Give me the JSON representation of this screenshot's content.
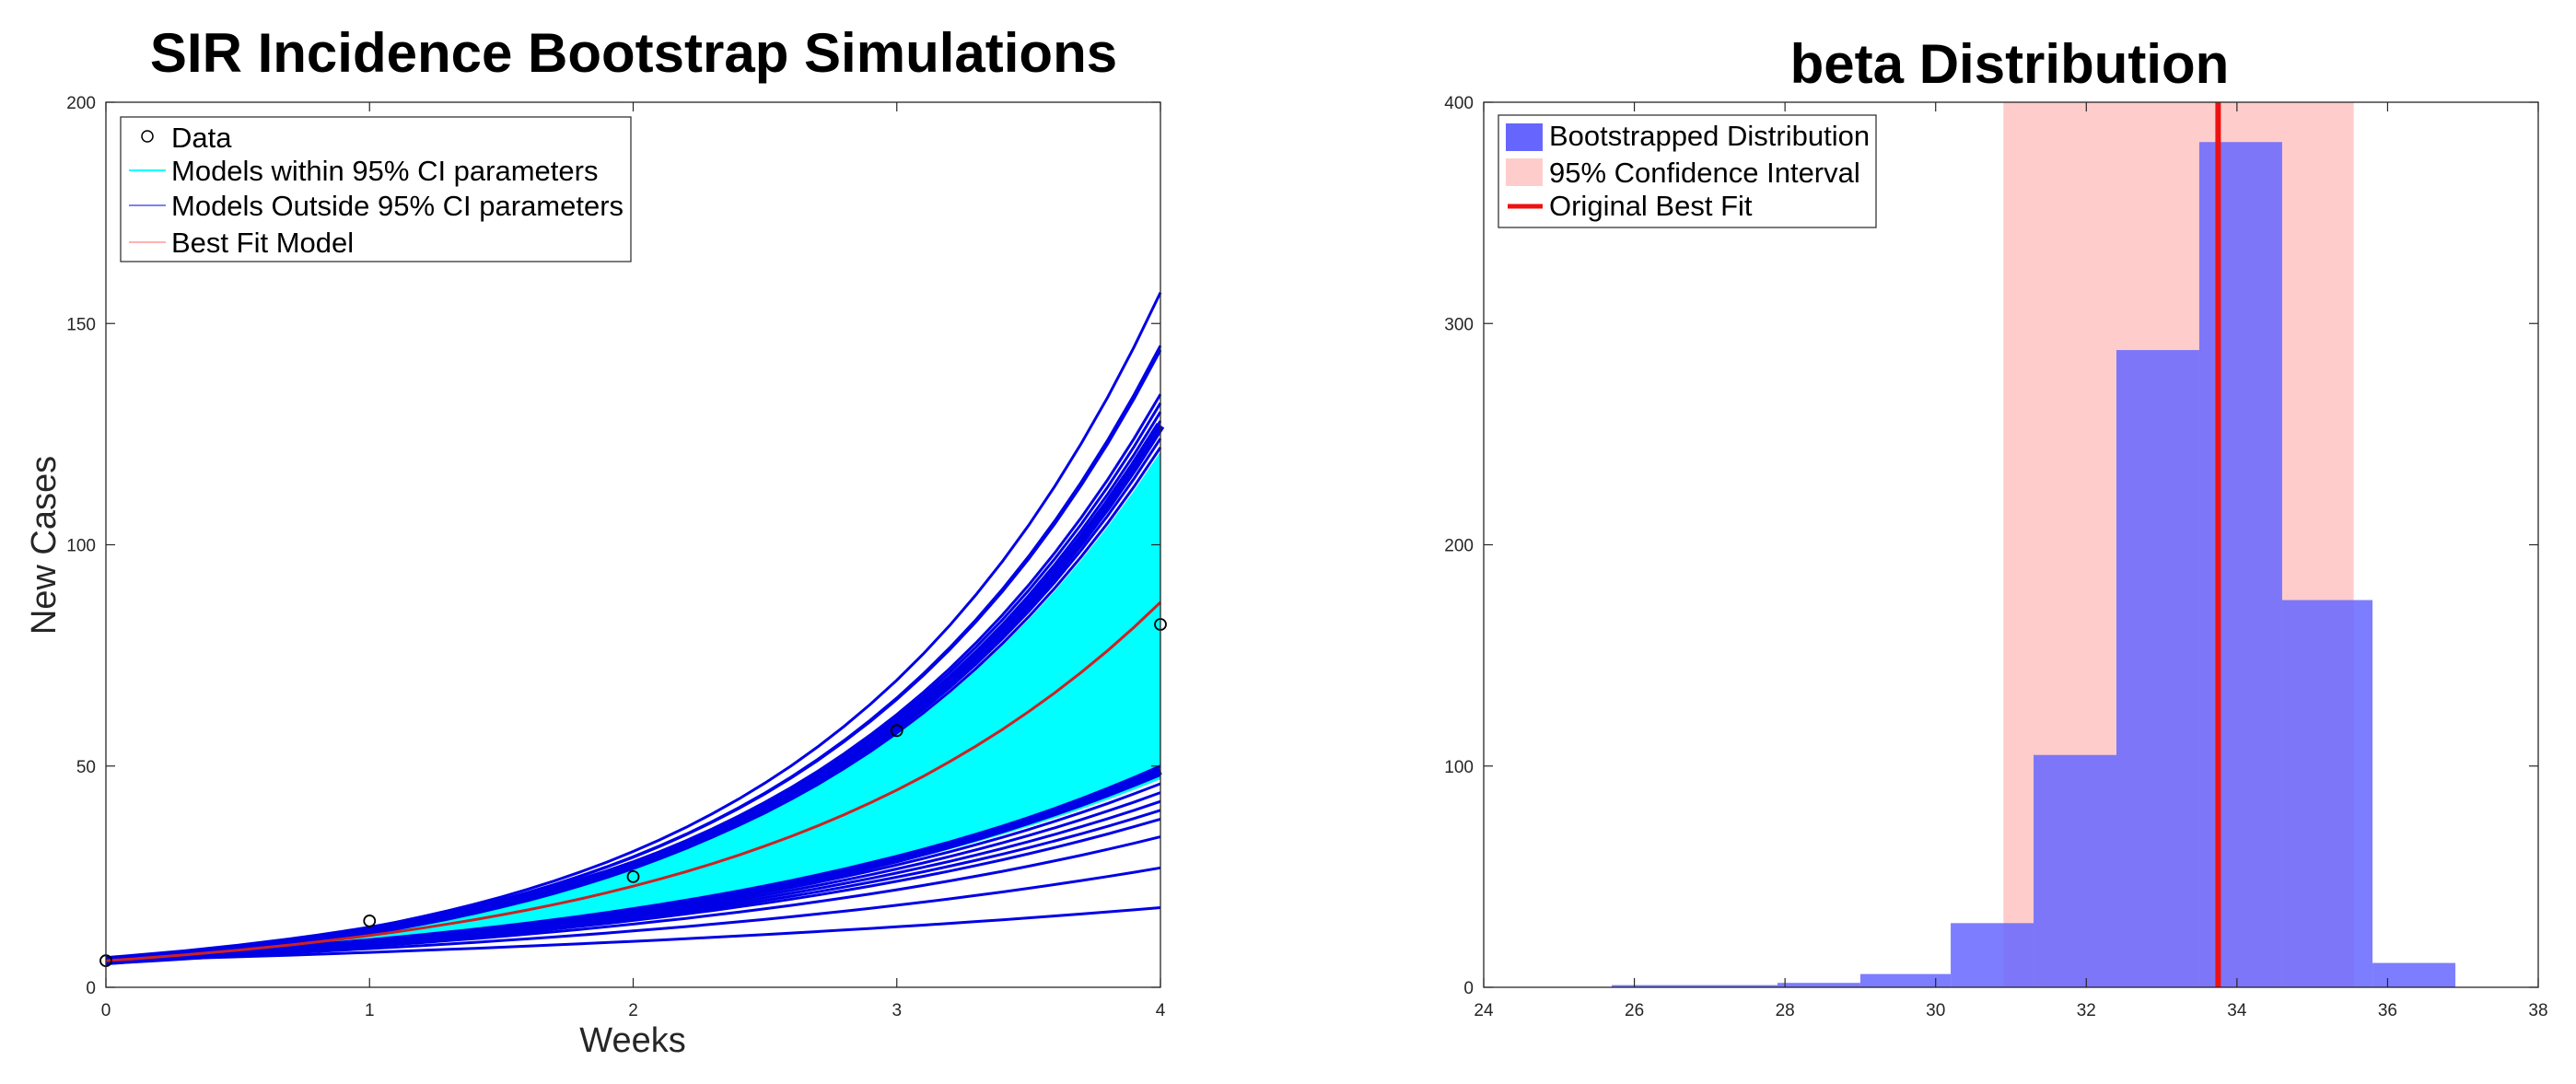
{
  "colors": {
    "data_marker": "#000000",
    "within_ci": "#00ffff",
    "outside_ci": "#0000e6",
    "best_fit": "#cc2222",
    "hist_fill": "#6666ff",
    "ci_band": "#ffcccc",
    "original_best_fit": "#ee1111"
  },
  "chart_data": [
    {
      "type": "line",
      "title": "SIR Incidence Bootstrap Simulations",
      "xlabel": "Weeks",
      "ylabel": "New Cases",
      "xlim": [
        0,
        4
      ],
      "ylim": [
        0,
        200
      ],
      "xticks": [
        "0",
        "1",
        "2",
        "3",
        "4"
      ],
      "yticks": [
        "0",
        "50",
        "100",
        "150",
        "200"
      ],
      "grid": false,
      "legend_position": "top-left",
      "legend": [
        "Data",
        "Models within 95% CI parameters",
        "Models Outside 95% CI parameters",
        "Best Fit Model"
      ],
      "data_points": {
        "x": [
          0,
          1,
          2,
          3,
          4
        ],
        "y": [
          6,
          15,
          25,
          58,
          82
        ]
      },
      "best_fit": {
        "x": [
          0,
          1,
          2,
          3,
          4
        ],
        "y": [
          6,
          12,
          23,
          45,
          87
        ]
      },
      "within_ci_band": {
        "x": [
          0,
          1,
          2,
          3,
          4
        ],
        "lower": [
          6,
          9,
          14,
          25,
          47
        ],
        "upper": [
          6,
          14,
          30,
          62,
          121
        ]
      },
      "outside_ci_endpoints": [
        18,
        27,
        34,
        38,
        40,
        42,
        44,
        46,
        48,
        50,
        122,
        124,
        126,
        128,
        130,
        132,
        134,
        144,
        145,
        157
      ]
    },
    {
      "type": "bar",
      "title": "beta Distribution",
      "xlim": [
        24,
        38
      ],
      "ylim": [
        0,
        400
      ],
      "xticks": [
        "24",
        "26",
        "28",
        "30",
        "32",
        "34",
        "36",
        "38"
      ],
      "yticks": [
        "0",
        "100",
        "200",
        "300",
        "400"
      ],
      "grid": false,
      "legend_position": "top-left",
      "legend": [
        "Bootstrapped Distribution",
        "95% Confidence Interval",
        "Original Best Fit"
      ],
      "bins": [
        {
          "x0": 25.7,
          "x1": 26.8,
          "value": 1
        },
        {
          "x0": 26.8,
          "x1": 27.9,
          "value": 1
        },
        {
          "x0": 27.9,
          "x1": 29.0,
          "value": 2
        },
        {
          "x0": 29.0,
          "x1": 30.2,
          "value": 6
        },
        {
          "x0": 30.2,
          "x1": 31.3,
          "value": 29
        },
        {
          "x0": 31.3,
          "x1": 32.4,
          "value": 105
        },
        {
          "x0": 32.4,
          "x1": 33.5,
          "value": 288
        },
        {
          "x0": 33.5,
          "x1": 34.6,
          "value": 382
        },
        {
          "x0": 34.6,
          "x1": 35.8,
          "value": 175
        },
        {
          "x0": 35.8,
          "x1": 36.9,
          "value": 11
        }
      ],
      "ci_range": [
        30.9,
        35.55
      ],
      "original_best_fit": 33.75
    }
  ]
}
